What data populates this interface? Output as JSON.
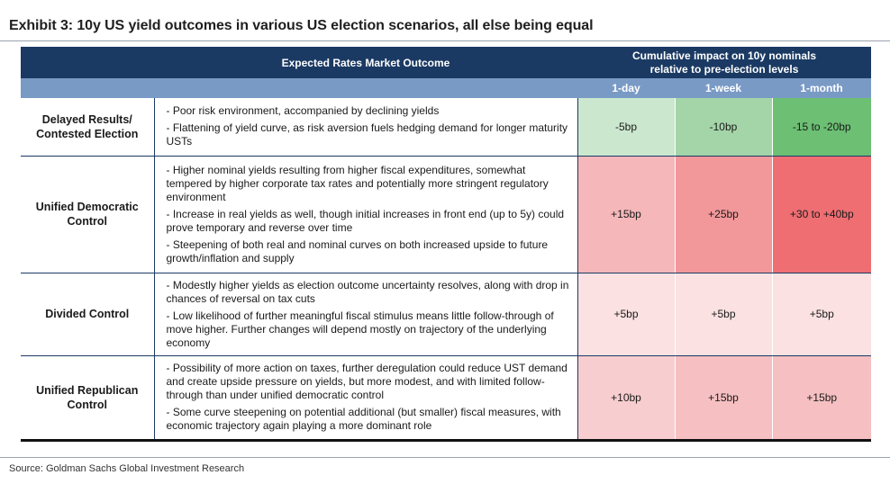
{
  "title": "Exhibit 3: 10y US yield outcomes in various US election scenarios, all else being equal",
  "header": {
    "outcome": "Expected Rates Market Outcome",
    "impact_line1": "Cumulative impact on 10y nominals",
    "impact_line2": "relative to pre-election levels",
    "periods": [
      "1-day",
      "1-week",
      "1-month"
    ]
  },
  "rows": [
    {
      "scenario_line1": "Delayed Results/",
      "scenario_line2": "Contested Election",
      "bullets": [
        "- Poor risk environment, accompanied by declining yields",
        "- Flattening of yield curve, as risk aversion fuels hedging demand for longer maturity USTs"
      ],
      "values": [
        "-5bp",
        "-10bp",
        "-15 to -20bp"
      ],
      "colors": [
        "#cbe8cf",
        "#a4d5a8",
        "#6cbf73"
      ]
    },
    {
      "scenario_line1": "Unified Democratic",
      "scenario_line2": "Control",
      "bullets": [
        "- Higher nominal yields resulting from higher fiscal expenditures, somewhat tempered by higher corporate tax rates and potentially more stringent regulatory environment",
        "- Increase in real yields as well, though initial increases in front end (up to 5y) could prove temporary and reverse over time",
        "- Steepening of both real and nominal curves on both increased upside to future growth/inflation and supply"
      ],
      "values": [
        "+15bp",
        "+25bp",
        "+30 to +40bp"
      ],
      "colors": [
        "#f5b7b9",
        "#f2979a",
        "#ee6e72"
      ]
    },
    {
      "scenario_line1": "Divided Control",
      "scenario_line2": "",
      "bullets": [
        "- Modestly higher yields as election outcome uncertainty resolves, along with drop in chances of reversal on tax cuts",
        "- Low likelihood of further meaningful fiscal stimulus means little follow-through of move higher. Further changes will depend mostly on trajectory of the underlying economy"
      ],
      "values": [
        "+5bp",
        "+5bp",
        "+5bp"
      ],
      "colors": [
        "#fbe1e2",
        "#fbe1e2",
        "#fbe1e2"
      ]
    },
    {
      "scenario_line1": "Unified Republican",
      "scenario_line2": "Control",
      "bullets": [
        "- Possibility of more action on taxes, further deregulation could reduce UST demand and create upside pressure on yields, but more modest, and with limited follow-through than under unified democratic control",
        "- Some curve steepening on potential additional (but smaller) fiscal measures, with economic trajectory again playing a more dominant role"
      ],
      "values": [
        "+10bp",
        "+15bp",
        "+15bp"
      ],
      "colors": [
        "#f8cdcf",
        "#f6bfc1",
        "#f6bfc1"
      ]
    }
  ],
  "source": "Source: Goldman Sachs Global Investment Research"
}
